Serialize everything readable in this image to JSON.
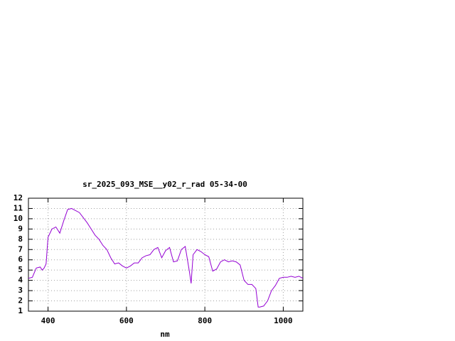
{
  "chart_data": {
    "type": "line",
    "title": "sr_2025_093_MSE__y02_r_rad 05-34-00",
    "x_label": "nm",
    "x": [
      350,
      360,
      370,
      380,
      385,
      390,
      395,
      400,
      410,
      420,
      430,
      440,
      450,
      460,
      470,
      480,
      490,
      500,
      510,
      520,
      530,
      540,
      550,
      560,
      570,
      580,
      590,
      600,
      610,
      620,
      630,
      640,
      650,
      660,
      670,
      680,
      690,
      700,
      710,
      720,
      730,
      740,
      750,
      760,
      765,
      770,
      780,
      790,
      800,
      810,
      820,
      830,
      840,
      850,
      860,
      870,
      880,
      890,
      900,
      910,
      920,
      930,
      936,
      940,
      950,
      960,
      970,
      980,
      990,
      1000,
      1010,
      1020,
      1030,
      1040,
      1050
    ],
    "series": [
      {
        "color": "#9400d3",
        "values": [
          4.2,
          4.3,
          5.2,
          5.3,
          5.0,
          5.2,
          5.6,
          8.2,
          9.0,
          9.2,
          8.6,
          9.8,
          10.9,
          11.0,
          10.8,
          10.6,
          10.1,
          9.6,
          9.0,
          8.4,
          8.0,
          7.4,
          7.0,
          6.2,
          5.6,
          5.7,
          5.4,
          5.2,
          5.4,
          5.7,
          5.7,
          6.2,
          6.4,
          6.5,
          7.0,
          7.2,
          6.2,
          6.9,
          7.2,
          5.8,
          5.9,
          7.0,
          7.3,
          5.0,
          3.7,
          6.5,
          7.0,
          6.8,
          6.5,
          6.3,
          4.9,
          5.1,
          5.8,
          6.0,
          5.8,
          5.9,
          5.8,
          5.5,
          4.0,
          3.6,
          3.6,
          3.2,
          1.4,
          1.4,
          1.5,
          2.0,
          3.0,
          3.5,
          4.2,
          4.3,
          4.3,
          4.4,
          4.3,
          4.4,
          4.2
        ]
      }
    ],
    "xlim": [
      350,
      1050
    ],
    "xticks": [
      400,
      600,
      800,
      1000
    ],
    "ylim": [
      1,
      12
    ],
    "yticks": [
      1,
      2,
      3,
      4,
      5,
      6,
      7,
      8,
      9,
      10,
      11,
      12
    ],
    "grid": true
  }
}
